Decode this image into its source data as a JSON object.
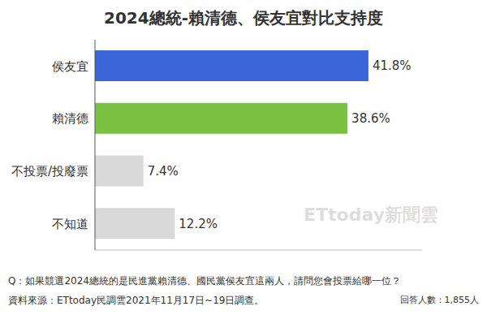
{
  "chart_data": {
    "type": "bar",
    "title": "2024總統-賴清德、侯友宜對比支持度",
    "orientation": "horizontal",
    "categories": [
      "侯友宜",
      "賴清德",
      "不投票/投廢票",
      "不知道"
    ],
    "values": [
      41.8,
      38.6,
      7.4,
      12.2
    ],
    "value_labels": [
      "41.8%",
      "38.6%",
      "7.4%",
      "12.2%"
    ],
    "colors": [
      "#3a66d8",
      "#7cc242",
      "#d9d9d9",
      "#d9d9d9"
    ],
    "xlim": [
      0,
      50
    ],
    "data_labels": true,
    "tick_labels": "y",
    "grid": false,
    "annotations": [
      "Q：如果競選2024總統的是民進黨賴清德、國民黨侯友宜這兩人，請問您會投票給哪一位？",
      "資料來源：ETtoday民調雲2021年11月17日~19日調查。",
      "回答人數：1,855人",
      "ETtoday新聞雲"
    ]
  }
}
